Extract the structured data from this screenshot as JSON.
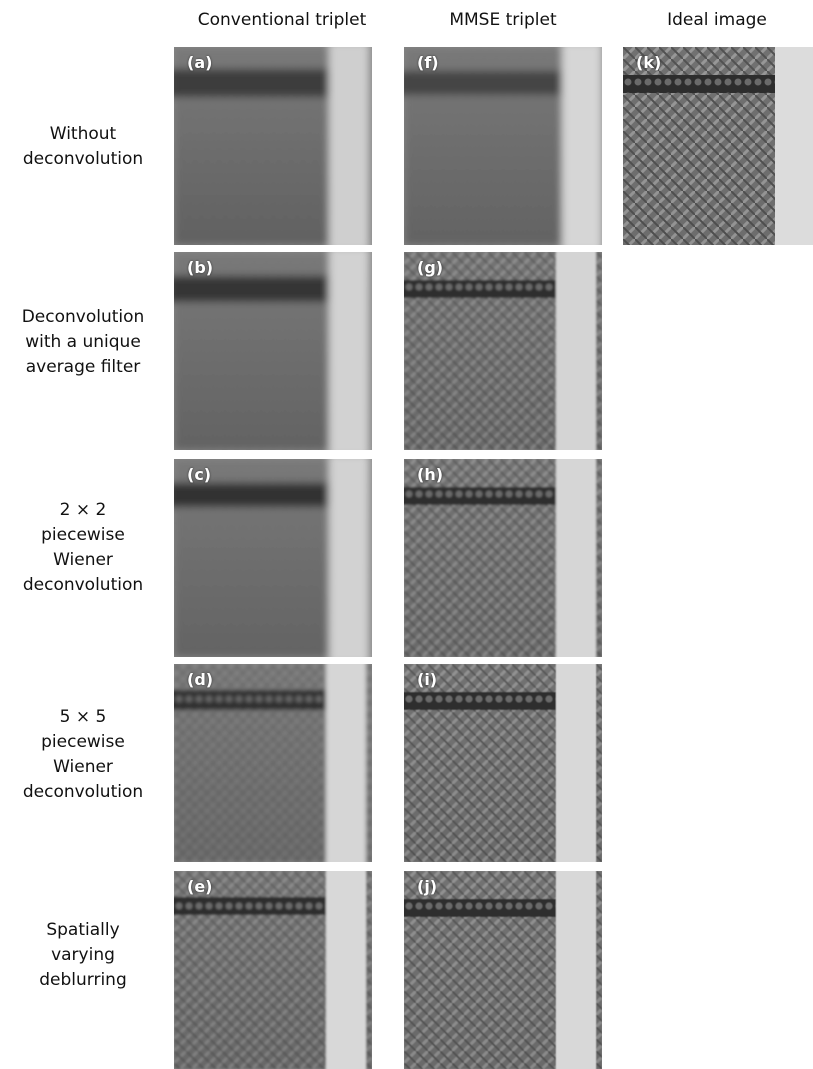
{
  "columns": [
    "Conventional triplet",
    "MMSE triplet",
    "Ideal image"
  ],
  "rows": [
    "Without deconvolution",
    "Deconvolution with a unique average filter",
    "2 × 2 piecewise Wiener deconvolution",
    "5 × 5 piecewise Wiener deconvolution",
    "Spatially varying deblurring"
  ],
  "row_label_lines": [
    [
      "Without",
      "deconvolution"
    ],
    [
      "Deconvolution",
      "with a unique",
      "average filter"
    ],
    [
      "2 × 2",
      "piecewise",
      "Wiener",
      "deconvolution"
    ],
    [
      "5 × 5",
      "piecewise",
      "Wiener",
      "deconvolution"
    ],
    [
      "Spatially",
      "varying",
      "deblurring"
    ]
  ],
  "panels": {
    "a": "(a)",
    "b": "(b)",
    "c": "(c)",
    "d": "(d)",
    "e": "(e)",
    "f": "(f)",
    "g": "(g)",
    "h": "(h)",
    "i": "(i)",
    "j": "(j)",
    "k": "(k)"
  },
  "colors": {
    "background": "#ffffff",
    "label": "#ffffff"
  }
}
